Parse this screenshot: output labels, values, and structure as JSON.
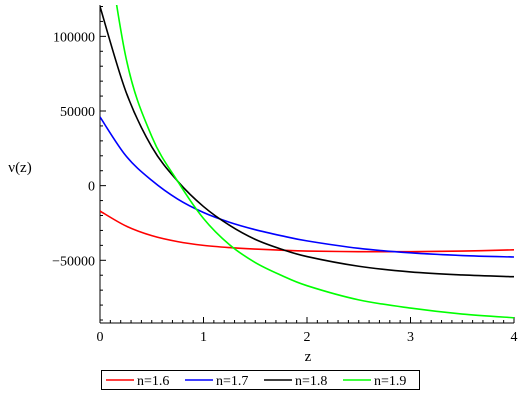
{
  "chart_data": {
    "type": "line",
    "title": "",
    "xlabel": "z",
    "ylabel": "ν(z)",
    "xlim": [
      0,
      4
    ],
    "ylim": [
      -92000,
      121000
    ],
    "grid": false,
    "legend_position": "bottom",
    "x_ticks": [
      0,
      1,
      2,
      3,
      4
    ],
    "x_tick_labels": [
      "0",
      "1",
      "2",
      "3",
      "4"
    ],
    "y_ticks": [
      100000,
      50000,
      0,
      -50000
    ],
    "y_tick_labels": [
      "100000",
      "50000",
      "0",
      "−50000"
    ],
    "x": [
      0,
      0.25,
      0.5,
      0.75,
      1,
      1.25,
      1.5,
      1.75,
      2,
      2.5,
      3,
      3.5,
      4
    ],
    "series": [
      {
        "name": "n=1.6",
        "color": "#ff0000",
        "values": [
          -17000,
          -27000,
          -33500,
          -37500,
          -40000,
          -41500,
          -42500,
          -43200,
          -43800,
          -44200,
          -44200,
          -43800,
          -43000
        ]
      },
      {
        "name": "n=1.7",
        "color": "#0000ff",
        "values": [
          46000,
          20000,
          3500,
          -9000,
          -18000,
          -24500,
          -29500,
          -33500,
          -37000,
          -42000,
          -45000,
          -46800,
          -47800
        ]
      },
      {
        "name": "n=1.8",
        "color": "#000000",
        "values": [
          120000,
          63000,
          26000,
          3000,
          -14000,
          -26500,
          -36000,
          -42500,
          -47500,
          -54000,
          -57800,
          -59800,
          -61000
        ]
      },
      {
        "name": "n=1.9",
        "color": "#00ff00",
        "values": [
          195000,
          86000,
          33000,
          3000,
          -22000,
          -39500,
          -51500,
          -60000,
          -67000,
          -76500,
          -82000,
          -86000,
          -88500
        ]
      }
    ]
  }
}
